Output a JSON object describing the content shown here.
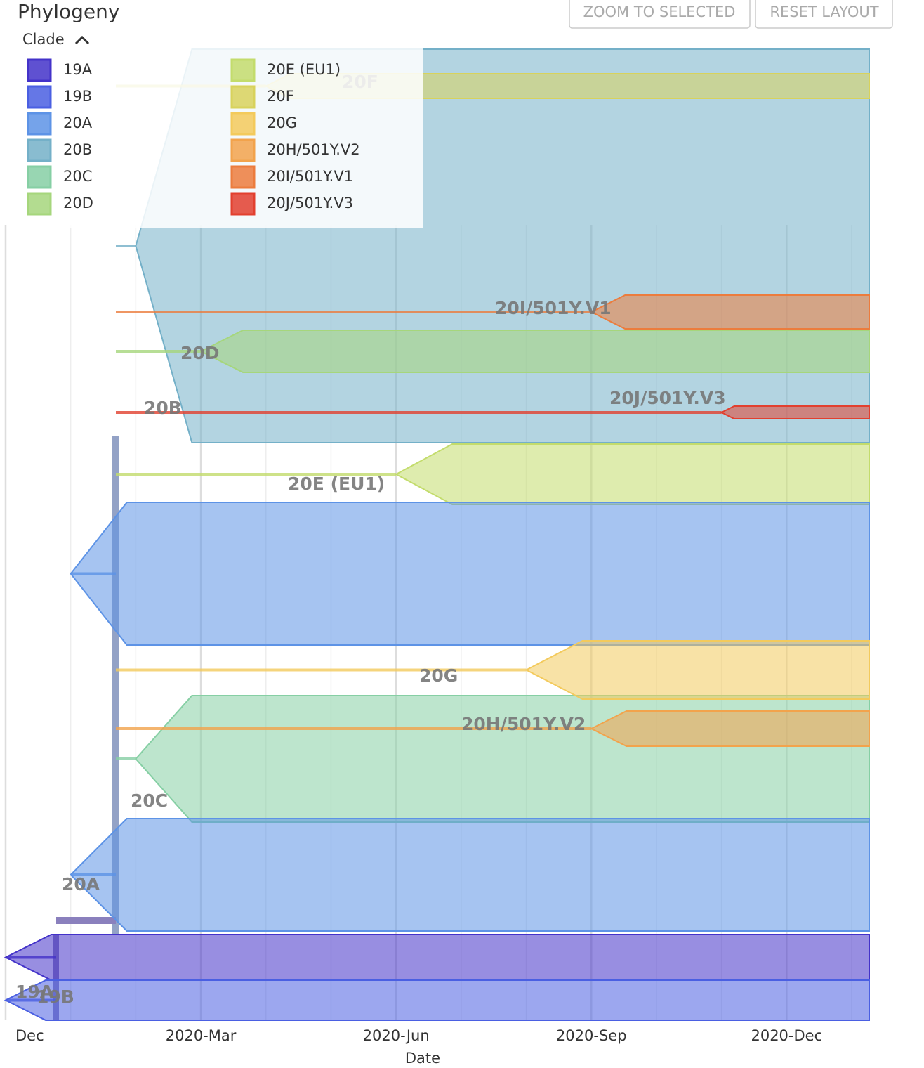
{
  "header": {
    "title": "Phylogeny",
    "buttons": [
      "ZOOM TO SELECTED",
      "RESET LAYOUT"
    ]
  },
  "chart_data": {
    "type": "phylogeny",
    "legend_title": "Clade",
    "x_label": "Date",
    "xlim": [
      "2019-12",
      "2021-01"
    ],
    "xticks": [
      {
        "value": "2019-12",
        "label": "Dec"
      },
      {
        "value": "2020-03",
        "label": "2020-Mar"
      },
      {
        "value": "2020-06",
        "label": "2020-Jun"
      },
      {
        "value": "2020-09",
        "label": "2020-Sep"
      },
      {
        "value": "2020-12",
        "label": "2020-Dec"
      }
    ],
    "grid": true,
    "clades": [
      {
        "name": "19A",
        "color": "#4332c9",
        "emergence": "2019-12"
      },
      {
        "name": "19B",
        "color": "#4a5fe2",
        "emergence": "2019-12"
      },
      {
        "name": "20A",
        "color": "#5d93e6",
        "emergence": "2020-01"
      },
      {
        "name": "20B",
        "color": "#74b0c8",
        "emergence": "2020-02"
      },
      {
        "name": "20C",
        "color": "#86cfa4",
        "emergence": "2020-02"
      },
      {
        "name": "20D",
        "color": "#a6d67c",
        "emergence": "2020-03"
      },
      {
        "name": "20E (EU1)",
        "color": "#c3dc6c",
        "emergence": "2020-06"
      },
      {
        "name": "20F",
        "color": "#d8d25c",
        "emergence": "2020-04"
      },
      {
        "name": "20G",
        "color": "#f3ca5c",
        "emergence": "2020-08"
      },
      {
        "name": "20H/501Y.V2",
        "color": "#f2a34c",
        "emergence": "2020-09"
      },
      {
        "name": "20I/501Y.V1",
        "color": "#ec7c3d",
        "emergence": "2020-09"
      },
      {
        "name": "20J/501Y.V3",
        "color": "#e2402f",
        "emergence": "2020-11"
      }
    ]
  }
}
